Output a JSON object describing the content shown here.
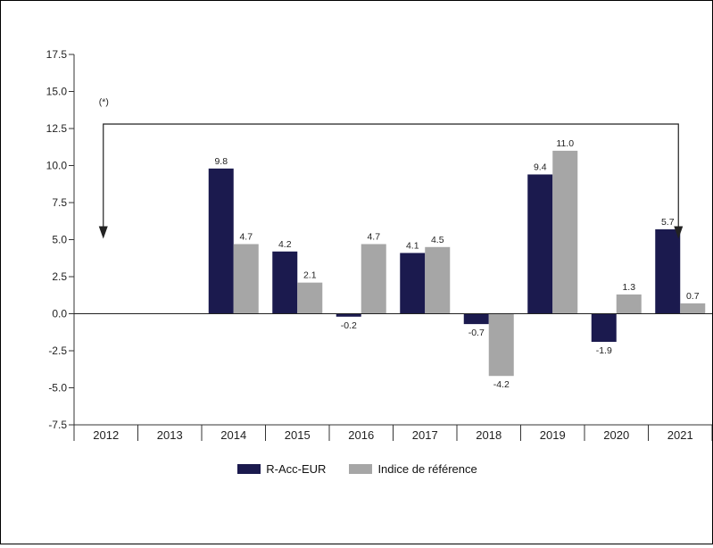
{
  "chart_data": {
    "type": "bar",
    "categories": [
      "2012",
      "2013",
      "2014",
      "2015",
      "2016",
      "2017",
      "2018",
      "2019",
      "2020",
      "2021"
    ],
    "series": [
      {
        "name": "R-Acc-EUR",
        "color": "#1b1a4e",
        "values": [
          null,
          null,
          9.8,
          4.2,
          -0.2,
          4.1,
          -0.7,
          9.4,
          -1.9,
          5.7
        ]
      },
      {
        "name": "Indice de référence",
        "color": "#a6a6a6",
        "values": [
          null,
          null,
          4.7,
          2.1,
          4.7,
          4.5,
          -4.2,
          11.0,
          1.3,
          0.7
        ]
      }
    ],
    "ylim": [
      -7.5,
      17.5
    ],
    "yticks": [
      "17.5",
      "15.0",
      "12.5",
      "10.0",
      "7.5",
      "5.0",
      "2.5",
      "0.0",
      "-2.5",
      "-5.0",
      "-7.5"
    ],
    "ytick_values": [
      17.5,
      15.0,
      12.5,
      10.0,
      7.5,
      5.0,
      2.5,
      0.0,
      -2.5,
      -5.0,
      -7.5
    ],
    "annotation": "(*)",
    "legend_position": "bottom",
    "grid": false
  }
}
